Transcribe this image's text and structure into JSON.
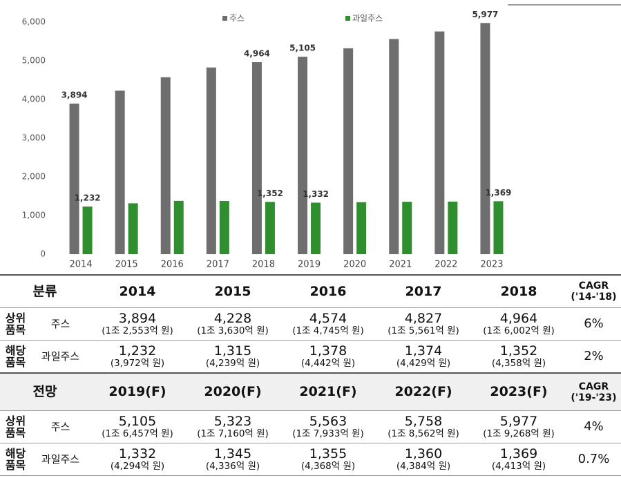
{
  "chart_data": {
    "type": "bar",
    "categories": [
      "2014",
      "2015",
      "2016",
      "2017",
      "2018",
      "2019",
      "2020",
      "2021",
      "2022",
      "2023"
    ],
    "series": [
      {
        "name": "주스",
        "color": "#6e6e6e",
        "values": [
          3894,
          4228,
          4574,
          4827,
          4964,
          5105,
          5323,
          5563,
          5758,
          5977
        ],
        "value_labels": [
          "3,894",
          null,
          null,
          null,
          "4,964",
          "5,105",
          null,
          null,
          null,
          "5,977"
        ]
      },
      {
        "name": "과일주스",
        "color": "#2f8f2f",
        "values": [
          1232,
          1315,
          1378,
          1374,
          1352,
          1332,
          1345,
          1355,
          1360,
          1369
        ],
        "value_labels": [
          "1,232",
          null,
          null,
          null,
          "1,352",
          "1,332",
          null,
          null,
          null,
          "1,369"
        ]
      }
    ],
    "ylim": [
      0,
      6000
    ],
    "yticks": [
      0,
      {
        "value": 1000,
        "label": "1,000"
      },
      {
        "value": 2000,
        "label": "2,000"
      },
      {
        "value": 3000,
        "label": "3,000"
      },
      {
        "value": 4000,
        "label": "4,000"
      },
      {
        "value": 5000,
        "label": "5,000"
      },
      {
        "value": 6000,
        "label": "6,000"
      }
    ],
    "grid": false,
    "legend": "top"
  },
  "table": {
    "sections": [
      {
        "header": [
          "분류",
          "2014",
          "2015",
          "2016",
          "2017",
          "2018"
        ],
        "cagr_header": [
          "CAGR",
          "('14-'18)"
        ],
        "rows": [
          {
            "group": [
              "상위",
              "품목"
            ],
            "item": "주스",
            "cells": [
              [
                "3,894",
                "(1조 2,553억 원)"
              ],
              [
                "4,228",
                "(1조 3,630억 원)"
              ],
              [
                "4,574",
                "(1조 4,745억 원)"
              ],
              [
                "4,827",
                "(1조 5,561억 원)"
              ],
              [
                "4,964",
                "(1조 6,002억 원)"
              ]
            ],
            "cagr": "6%"
          },
          {
            "group": [
              "해당",
              "품목"
            ],
            "item": "과일주스",
            "cells": [
              [
                "1,232",
                "(3,972억 원)"
              ],
              [
                "1,315",
                "(4,239억 원)"
              ],
              [
                "1,378",
                "(4,442억 원)"
              ],
              [
                "1,374",
                "(4,429억 원)"
              ],
              [
                "1,352",
                "(4,358억 원)"
              ]
            ],
            "cagr": "2%"
          }
        ]
      },
      {
        "header": [
          "전망",
          "2019(F)",
          "2020(F)",
          "2021(F)",
          "2022(F)",
          "2023(F)"
        ],
        "cagr_header": [
          "CAGR",
          "('19-'23)"
        ],
        "rows": [
          {
            "group": [
              "상위",
              "품목"
            ],
            "item": "주스",
            "cells": [
              [
                "5,105",
                "(1조 6,457억 원)"
              ],
              [
                "5,323",
                "(1조 7,160억 원)"
              ],
              [
                "5,563",
                "(1조 7,933억 원)"
              ],
              [
                "5,758",
                "(1조 8,562억 원)"
              ],
              [
                "5,977",
                "(1조 9,268억 원)"
              ]
            ],
            "cagr": "4%"
          },
          {
            "group": [
              "해당",
              "품목"
            ],
            "item": "과일주스",
            "cells": [
              [
                "1,332",
                "(4,294억 원)"
              ],
              [
                "1,345",
                "(4,336억 원)"
              ],
              [
                "1,355",
                "(4,368억 원)"
              ],
              [
                "1,360",
                "(4,384억 원)"
              ],
              [
                "1,369",
                "(4,413억 원)"
              ]
            ],
            "cagr": "0.7%"
          }
        ]
      }
    ]
  }
}
